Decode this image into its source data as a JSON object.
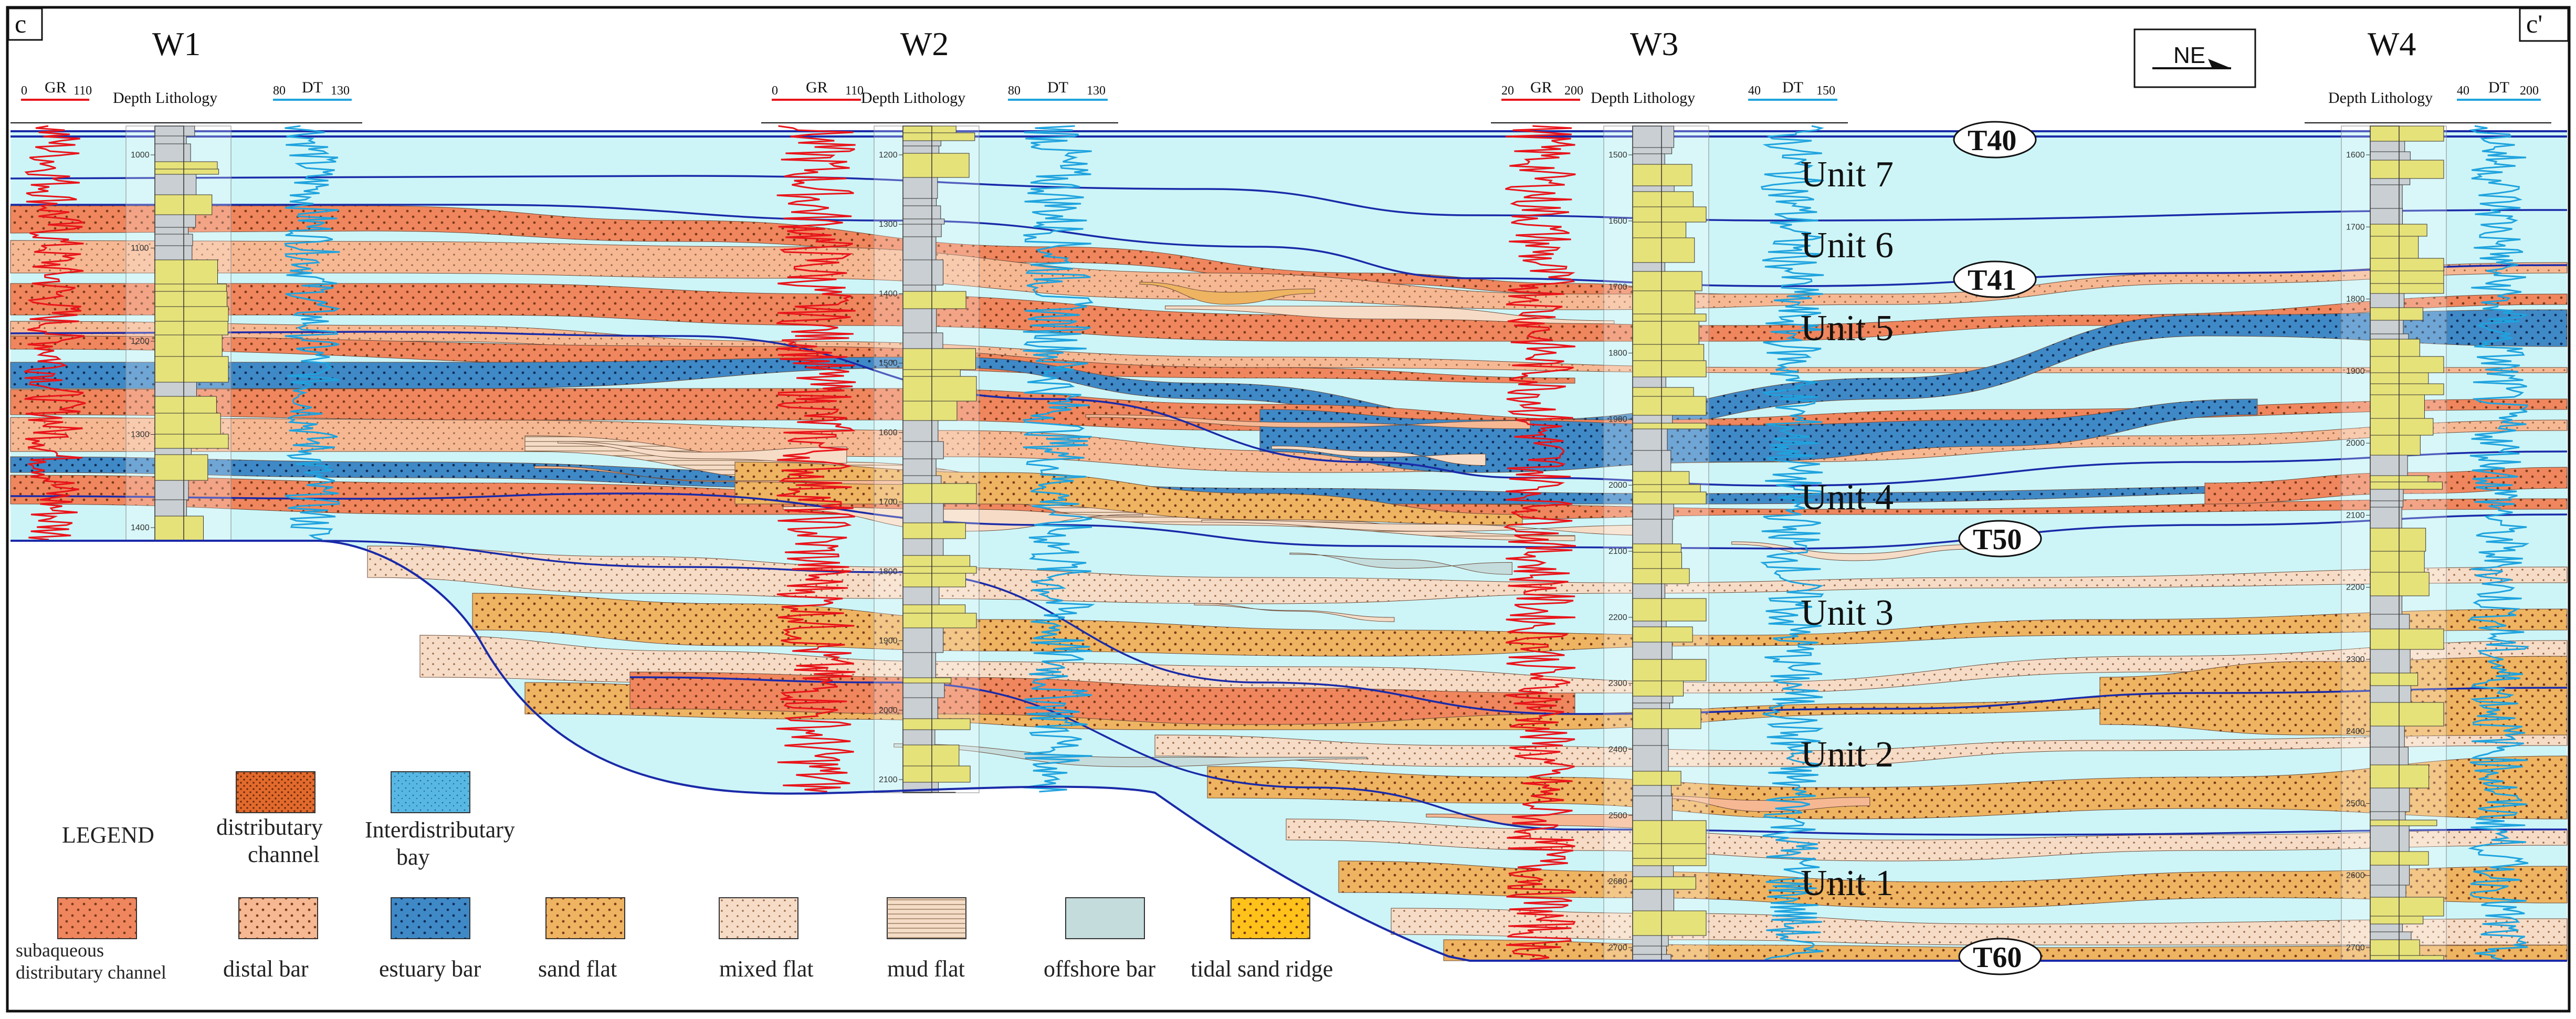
{
  "corner_labels": {
    "left": "c",
    "right": "c'"
  },
  "orientation": "NE",
  "wells": [
    {
      "name": "W1",
      "gr_min": "0",
      "gr_label": "GR",
      "gr_max": "110",
      "depth_lith": "Depth Lithology",
      "dt_min": "80",
      "dt_label": "DT",
      "dt_max": "130",
      "depth_ticks": [
        "1000",
        "1100",
        "1200",
        "1300",
        "1400"
      ]
    },
    {
      "name": "W2",
      "gr_min": "0",
      "gr_label": "GR",
      "gr_max": "110",
      "depth_lith": "Depth Lithology",
      "dt_min": "80",
      "dt_label": "DT",
      "dt_max": "130",
      "depth_ticks": [
        "1200",
        "1300",
        "1400",
        "1500",
        "1600",
        "1700",
        "1800",
        "1900",
        "2000",
        "2100"
      ]
    },
    {
      "name": "W3",
      "gr_min": "20",
      "gr_label": "GR",
      "gr_max": "200",
      "depth_lith": "Depth Lithology",
      "dt_min": "40",
      "dt_label": "DT",
      "dt_max": "150",
      "depth_ticks": [
        "1500",
        "1600",
        "1700",
        "1800",
        "1900",
        "2000",
        "2100",
        "2200",
        "2300",
        "2400",
        "2500",
        "2600",
        "2700"
      ]
    },
    {
      "name": "W4",
      "depth_lith": "Depth Lithology",
      "dt_min": "40",
      "dt_label": "DT",
      "dt_max": "200",
      "depth_ticks": [
        "1600",
        "1700",
        "1800",
        "1900",
        "2000",
        "2100",
        "2200",
        "2300",
        "2400",
        "2500",
        "2600",
        "2700"
      ]
    }
  ],
  "units": [
    "Unit 7",
    "Unit 6",
    "Unit 5",
    "Unit 4",
    "Unit 3",
    "Unit 2",
    "Unit 1"
  ],
  "horizons": [
    "T40",
    "T41",
    "T50",
    "T60"
  ],
  "legend": {
    "title": "LEGEND",
    "items": [
      {
        "label": "distributary channel",
        "line1": "distributary",
        "line2": "channel",
        "color": "#e26a2c",
        "pattern": "dense-dots"
      },
      {
        "label": "Interdistributary bay",
        "line1": "Interdistributary",
        "line2": "bay",
        "color": "#59b7e3",
        "pattern": "stipple"
      },
      {
        "label": "subaqueous distributary channel",
        "line1": "subaqueous",
        "line2": "distributary channel",
        "color": "#f0865e",
        "pattern": "dots"
      },
      {
        "label": "distal bar",
        "line1": "distal bar",
        "color": "#f6b893",
        "pattern": "dots"
      },
      {
        "label": "estuary bar",
        "line1": "estuary bar",
        "color": "#3f89c7",
        "pattern": "dots"
      },
      {
        "label": "sand flat",
        "line1": "sand flat",
        "color": "#eeb461",
        "pattern": "dots"
      },
      {
        "label": "mixed flat",
        "line1": "mixed flat",
        "color": "#f6dcc6",
        "pattern": "fine-dots"
      },
      {
        "label": "mud flat",
        "line1": "mud flat",
        "color": "#f4dcc7",
        "pattern": "lines"
      },
      {
        "label": "offshore bar",
        "line1": "offshore bar",
        "color": "#c4dcdc",
        "pattern": "none"
      },
      {
        "label": "tidal sand ridge",
        "line1": "tidal sand ridge",
        "color": "#ffc21a",
        "pattern": "dots"
      }
    ]
  },
  "colors": {
    "background_facies": "#cdf5f7",
    "subaqueous_channel": "#f0865e",
    "distal_bar": "#f6b893",
    "estuary_bar": "#3f89c7",
    "sand_flat": "#eeb461",
    "mixed_flat": "#f6dcc6",
    "mud_flat": "#f4dcc7",
    "offshore_bar": "#c4dcdc",
    "horizon_line": "#1a2aa8",
    "gr_curve": "#e8141a",
    "dt_curve": "#1fa3de",
    "lithology": "#e6e27a"
  }
}
